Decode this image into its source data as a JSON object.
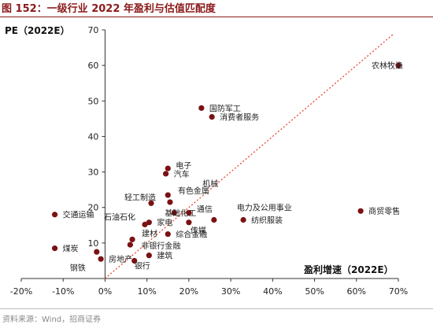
{
  "header": {
    "title": "图 152：一级行业 2022 年盈利与估值匹配度"
  },
  "footer": {
    "source": "资料来源：Wind，招商证券"
  },
  "colors": {
    "accent": "#8b1a1a",
    "point": "#7b1113",
    "trend": "#e8472f"
  },
  "chart_data": {
    "type": "scatter",
    "title": "",
    "xlabel": "盈利增速（2022E）",
    "ylabel": "PE（2022E）",
    "xlim": [
      -0.2,
      0.7
    ],
    "ylim": [
      0,
      70
    ],
    "x_ticks": [
      -0.2,
      -0.1,
      0.0,
      0.1,
      0.2,
      0.3,
      0.4,
      0.5,
      0.6,
      0.7
    ],
    "x_tick_labels": [
      "-20%",
      "-10%",
      "0%",
      "10%",
      "20%",
      "30%",
      "40%",
      "50%",
      "60%",
      "70%"
    ],
    "y_ticks": [
      0,
      10,
      20,
      30,
      40,
      50,
      60,
      70
    ],
    "y_tick_labels": [
      "0",
      "10",
      "20",
      "30",
      "40",
      "50",
      "60",
      "70"
    ],
    "grid": false,
    "trend_line": {
      "from": [
        0.0,
        0.0
      ],
      "to": [
        0.69,
        69.0
      ],
      "style": "dotted"
    },
    "points": [
      {
        "name": "农林牧渔",
        "x": 0.7,
        "y": 60.0
      },
      {
        "name": "国防军工",
        "x": 0.23,
        "y": 48.0
      },
      {
        "name": "消费者服务",
        "x": 0.255,
        "y": 45.5
      },
      {
        "name": "电子",
        "x": 0.15,
        "y": 31.0
      },
      {
        "name": "汽车",
        "x": 0.145,
        "y": 29.5
      },
      {
        "name": "机械",
        "x": 0.15,
        "y": 23.5
      },
      {
        "name": "有色金属",
        "x": 0.155,
        "y": 21.5
      },
      {
        "name": "轻工制造",
        "x": 0.11,
        "y": 21.2
      },
      {
        "name": "基础化工",
        "x": 0.165,
        "y": 18.5
      },
      {
        "name": "通信",
        "x": 0.2,
        "y": 18.5
      },
      {
        "name": "电力及公用事业",
        "x": 0.26,
        "y": 16.5
      },
      {
        "name": "纺织服装",
        "x": 0.33,
        "y": 16.5
      },
      {
        "name": "商贸零售",
        "x": 0.61,
        "y": 19.0
      },
      {
        "name": "交通运输",
        "x": -0.12,
        "y": 18.0
      },
      {
        "name": "家电",
        "x": 0.105,
        "y": 15.8
      },
      {
        "name": "传媒",
        "x": 0.2,
        "y": 15.8
      },
      {
        "name": "石油石化",
        "x": 0.095,
        "y": 15.2
      },
      {
        "name": "综合金融",
        "x": 0.15,
        "y": 12.5
      },
      {
        "name": "建材",
        "x": 0.065,
        "y": 11.0
      },
      {
        "name": "非银行金融",
        "x": 0.06,
        "y": 9.5
      },
      {
        "name": "煤炭",
        "x": -0.12,
        "y": 8.5
      },
      {
        "name": "钢铁",
        "x": -0.02,
        "y": 7.5
      },
      {
        "name": "建筑",
        "x": 0.105,
        "y": 6.5
      },
      {
        "name": "房地产",
        "x": -0.01,
        "y": 5.5
      },
      {
        "name": "银行",
        "x": 0.07,
        "y": 5.0
      }
    ]
  }
}
